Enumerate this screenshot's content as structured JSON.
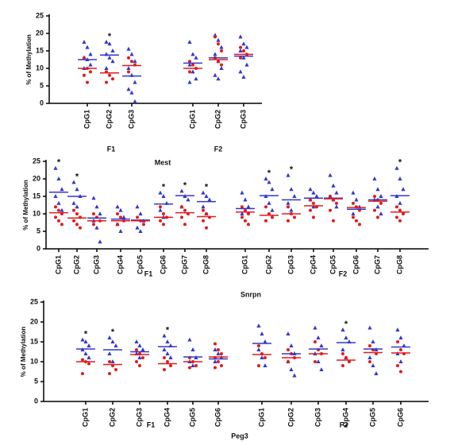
{
  "chart_data": [
    {
      "type": "dot",
      "title": "Mest",
      "ylabel": "% of Methylation",
      "ylim": [
        0,
        25
      ],
      "yticks": [
        0,
        5,
        10,
        15,
        20,
        25
      ],
      "blue_color": "#3438c8",
      "red_color": "#e31b1b",
      "groups": [
        {
          "label": "F1",
          "items": [
            {
              "label": "CpG1",
              "blue": [
                17.5,
                16,
                14,
                13,
                12.5,
                11,
                10
              ],
              "red": [
                13,
                10,
                9,
                8,
                6
              ],
              "blue_mean": 12.5,
              "red_mean": 10
            },
            {
              "label": "CpG2",
              "blue": [
                17.5,
                17,
                15,
                14,
                13,
                12,
                10
              ],
              "red": [
                9,
                8,
                7,
                6
              ],
              "blue_mean": 13.8,
              "red_mean": 8.7,
              "mark": "*"
            },
            {
              "label": "CpG3",
              "blue": [
                15.5,
                14,
                12,
                10,
                8,
                6,
                4,
                3,
                0.5
              ],
              "red": [
                13,
                12,
                11,
                9
              ],
              "blue_mean": 7.8,
              "red_mean": 10.8
            }
          ]
        },
        {
          "label": "F2",
          "items": [
            {
              "label": "CpG1",
              "blue": [
                17.5,
                14,
                13,
                11,
                9,
                7,
                6
              ],
              "red": [
                12,
                11,
                10,
                9
              ],
              "blue_mean": 11.5,
              "red_mean": 10
            },
            {
              "label": "CpG2",
              "blue": [
                19.5,
                18,
                16,
                14,
                12,
                10,
                8,
                7
              ],
              "red": [
                19,
                17,
                15,
                13,
                12,
                11
              ],
              "blue_mean": 13,
              "red_mean": 12.5
            },
            {
              "label": "CpG3",
              "blue": [
                19,
                17,
                16,
                15,
                13,
                11,
                9,
                7.5
              ],
              "red": [
                16,
                15,
                14,
                13
              ],
              "blue_mean": 13.5,
              "red_mean": 14
            }
          ]
        }
      ]
    },
    {
      "type": "dot",
      "title": "Snrpn",
      "ylabel": "% of Methylation",
      "ylim": [
        0,
        25
      ],
      "yticks": [
        0,
        5,
        10,
        15,
        20,
        25
      ],
      "blue_color": "#3438c8",
      "red_color": "#e31b1b",
      "groups": [
        {
          "label": "F1",
          "items": [
            {
              "label": "CpG1",
              "blue": [
                23,
                20,
                17,
                15,
                13,
                11
              ],
              "red": [
                12,
                11,
                10,
                9,
                8,
                7
              ],
              "blue_mean": 16.2,
              "red_mean": 10.3,
              "mark": "*"
            },
            {
              "label": "CpG2",
              "blue": [
                19,
                17,
                15,
                13,
                12
              ],
              "red": [
                11,
                10,
                9,
                8,
                7,
                6
              ],
              "blue_mean": 15,
              "red_mean": 8.8,
              "mark": "*"
            },
            {
              "label": "CpG3",
              "blue": [
                14.5,
                12,
                10,
                8,
                6,
                2
              ],
              "red": [
                10,
                9,
                8,
                7
              ],
              "blue_mean": 8.8,
              "red_mean": 8
            },
            {
              "label": "CpG4",
              "blue": [
                12,
                11,
                9,
                7,
                5
              ],
              "red": [
                10,
                9,
                8,
                7
              ],
              "blue_mean": 8.5,
              "red_mean": 8
            },
            {
              "label": "CpG5",
              "blue": [
                12,
                10,
                8,
                6,
                5
              ],
              "red": [
                9,
                8,
                7
              ],
              "blue_mean": 8.2,
              "red_mean": 8
            },
            {
              "label": "CpG6",
              "blue": [
                16,
                15,
                13,
                11,
                9
              ],
              "red": [
                12,
                10,
                9,
                8,
                7
              ],
              "blue_mean": 12.8,
              "red_mean": 9,
              "mark": "*"
            },
            {
              "label": "CpG7",
              "blue": [
                16.5,
                15,
                14,
                12
              ],
              "red": [
                12,
                11,
                10,
                9,
                7
              ],
              "blue_mean": 15.2,
              "red_mean": 10.3,
              "mark": "*"
            },
            {
              "label": "CpG8",
              "blue": [
                16,
                15,
                14,
                12,
                10
              ],
              "red": [
                11,
                10,
                9,
                8,
                6
              ],
              "blue_mean": 13.5,
              "red_mean": 9.2,
              "mark": "*"
            }
          ]
        },
        {
          "label": "F2",
          "items": [
            {
              "label": "CpG1",
              "blue": [
                16,
                14,
                12,
                10
              ],
              "red": [
                12,
                11,
                10,
                9,
                8,
                7
              ],
              "blue_mean": 11.5,
              "red_mean": 10.5
            },
            {
              "label": "CpG2",
              "blue": [
                20,
                19,
                17,
                15,
                13,
                11
              ],
              "red": [
                12,
                10,
                9,
                8
              ],
              "blue_mean": 15.2,
              "red_mean": 9.6,
              "mark": "*"
            },
            {
              "label": "CpG3",
              "blue": [
                21,
                17,
                15,
                13,
                11
              ],
              "red": [
                12,
                10,
                9,
                8
              ],
              "blue_mean": 14,
              "red_mean": 10,
              "mark": "*"
            },
            {
              "label": "CpG4",
              "blue": [
                17,
                16,
                15,
                14,
                12
              ],
              "red": [
                14,
                13,
                12,
                11,
                9
              ],
              "blue_mean": 14.5,
              "red_mean": 12.3
            },
            {
              "label": "CpG5",
              "blue": [
                21,
                18,
                16,
                15,
                14,
                12
              ],
              "red": [
                15,
                14,
                13,
                11,
                8
              ],
              "blue_mean": 14.5,
              "red_mean": 14.3
            },
            {
              "label": "CpG6",
              "blue": [
                16,
                14,
                12,
                10
              ],
              "red": [
                13,
                12,
                11,
                9,
                8,
                7
              ],
              "blue_mean": 11.3,
              "red_mean": 11.8
            },
            {
              "label": "CpG7",
              "blue": [
                20,
                17,
                15,
                14,
                12,
                10
              ],
              "red": [
                15,
                14,
                13,
                11,
                9
              ],
              "blue_mean": 14,
              "red_mean": 13.6
            },
            {
              "label": "CpG8",
              "blue": [
                23,
                20,
                17,
                15,
                13
              ],
              "red": [
                12,
                11,
                10,
                9,
                8
              ],
              "blue_mean": 15.2,
              "red_mean": 10.5,
              "mark": "*"
            }
          ]
        }
      ]
    },
    {
      "type": "dot",
      "title": "Peg3",
      "ylabel": "% of Methylation",
      "ylim": [
        0,
        25
      ],
      "yticks": [
        0,
        5,
        10,
        15,
        20,
        25
      ],
      "blue_color": "#3438c8",
      "red_color": "#e31b1b",
      "groups": [
        {
          "label": "F1",
          "items": [
            {
              "label": "CpG1",
              "blue": [
                15.5,
                15,
                14,
                13,
                12,
                11
              ],
              "red": [
                10.5,
                10,
                9.5,
                7
              ],
              "blue_mean": 13.2,
              "red_mean": 10,
              "mark": "*"
            },
            {
              "label": "CpG2",
              "blue": [
                16,
                15,
                14,
                12,
                10
              ],
              "red": [
                10,
                9,
                8,
                7
              ],
              "blue_mean": 13,
              "red_mean": 9.3,
              "mark": "*"
            },
            {
              "label": "CpG3",
              "blue": [
                15,
                14,
                13,
                12,
                11
              ],
              "red": [
                13,
                12,
                11,
                10,
                9
              ],
              "blue_mean": 12.5,
              "red_mean": 11.8
            },
            {
              "label": "CpG4",
              "blue": [
                16.5,
                15,
                14,
                13,
                12,
                11
              ],
              "red": [
                11,
                10,
                9,
                8
              ],
              "blue_mean": 13.8,
              "red_mean": 9.5,
              "mark": "*"
            },
            {
              "label": "CpG5",
              "blue": [
                15.5,
                13,
                11,
                10,
                9
              ],
              "red": [
                11,
                10,
                9,
                8.5
              ],
              "blue_mean": 11.2,
              "red_mean": 10
            },
            {
              "label": "CpG6",
              "blue": [
                13,
                12,
                11,
                10
              ],
              "red": [
                14.5,
                13,
                12,
                11,
                10,
                9,
                8.5
              ],
              "blue_mean": 10.7,
              "red_mean": 11.2
            }
          ]
        },
        {
          "label": "F2",
          "items": [
            {
              "label": "CpG1",
              "blue": [
                19,
                17,
                15,
                13,
                11,
                9
              ],
              "red": [
                14,
                12,
                11,
                9
              ],
              "blue_mean": 14.6,
              "red_mean": 11.8
            },
            {
              "label": "CpG2",
              "blue": [
                17,
                14,
                12,
                10,
                8,
                6.5
              ],
              "red": [
                13,
                12,
                11,
                10
              ],
              "blue_mean": 12,
              "red_mean": 11
            },
            {
              "label": "CpG3",
              "blue": [
                18.5,
                16,
                14,
                12,
                10,
                8
              ],
              "red": [
                15,
                13,
                12,
                10
              ],
              "blue_mean": 13.2,
              "red_mean": 12
            },
            {
              "label": "CpG4",
              "blue": [
                18,
                16,
                15,
                13,
                11
              ],
              "red": [
                12,
                11,
                10,
                9
              ],
              "blue_mean": 14.8,
              "red_mean": 10.4,
              "mark": "*"
            },
            {
              "label": "CpG5",
              "blue": [
                18.5,
                15,
                13,
                11,
                9,
                7
              ],
              "red": [
                14,
                13,
                12,
                10
              ],
              "blue_mean": 13.2,
              "red_mean": 12.3
            },
            {
              "label": "CpG6",
              "blue": [
                18,
                16,
                14,
                12,
                10
              ],
              "red": [
                15,
                13,
                12,
                9,
                7.5
              ],
              "blue_mean": 13.7,
              "red_mean": 12.2
            }
          ]
        }
      ]
    }
  ]
}
